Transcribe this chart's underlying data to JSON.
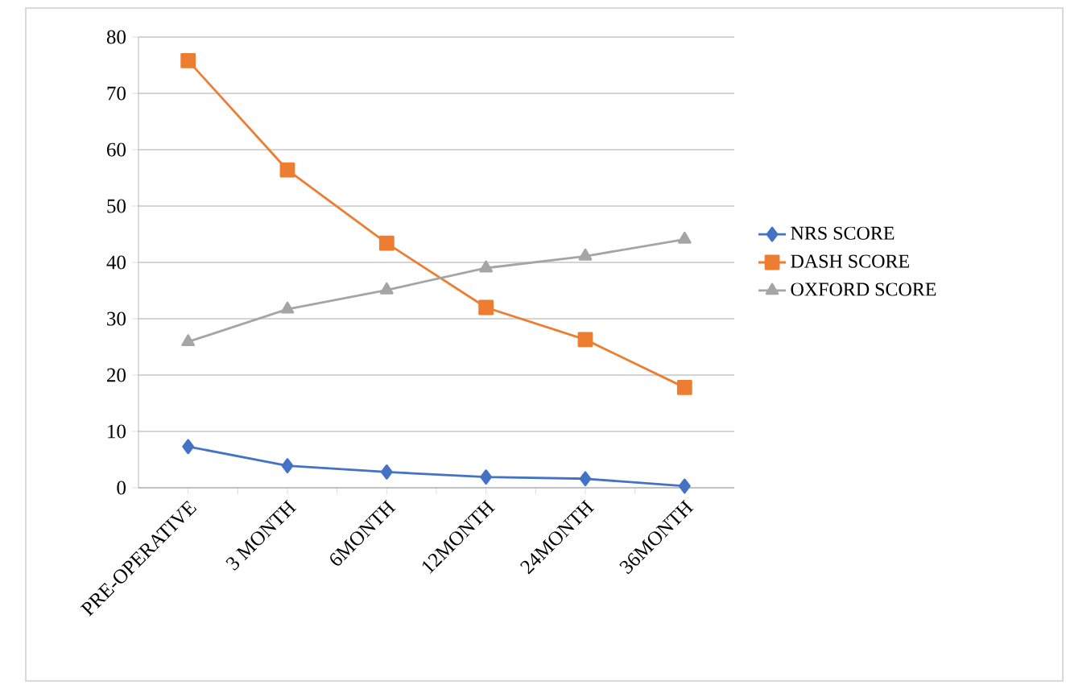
{
  "chart_data": {
    "type": "line",
    "categories": [
      "PRE-OPERATIVE",
      "3 MONTH",
      "6MONTH",
      "12MONTH",
      "24MONTH",
      "36MONTH"
    ],
    "series": [
      {
        "name": "NRS SCORE",
        "color": "#4472c4",
        "marker": "diamond",
        "values": [
          7.3,
          3.9,
          2.8,
          1.9,
          1.6,
          0.3
        ]
      },
      {
        "name": "DASH SCORE",
        "color": "#ed7d31",
        "marker": "square",
        "values": [
          75.8,
          56.4,
          43.4,
          32.0,
          26.3,
          17.8
        ]
      },
      {
        "name": "OXFORD SCORE",
        "color": "#a5a5a5",
        "marker": "triangle",
        "values": [
          25.9,
          31.7,
          35.1,
          39.0,
          41.1,
          44.1
        ]
      }
    ],
    "ylim": [
      0,
      80
    ],
    "yticks": [
      0,
      10,
      20,
      30,
      40,
      50,
      60,
      70,
      80
    ],
    "grid": "y",
    "legend": "right"
  }
}
